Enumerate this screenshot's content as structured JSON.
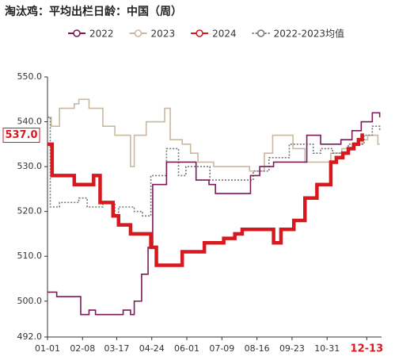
{
  "chart_data": {
    "type": "step-line",
    "title": "淘汰鸡：平均出栏日龄：中国（周）",
    "xlim": [
      0,
      362
    ],
    "xticks": [
      {
        "value": 0,
        "label": "01-01"
      },
      {
        "value": 38,
        "label": "02-08"
      },
      {
        "value": 75,
        "label": "03-17"
      },
      {
        "value": 113,
        "label": "04-24"
      },
      {
        "value": 151,
        "label": "06-01"
      },
      {
        "value": 189,
        "label": "07-09"
      },
      {
        "value": 227,
        "label": "08-16"
      },
      {
        "value": 265,
        "label": "09-23"
      },
      {
        "value": 303,
        "label": "10-31"
      },
      {
        "value": 346,
        "label": "12-13"
      }
    ],
    "ylim": [
      492,
      550
    ],
    "yticks": [
      {
        "value": 492,
        "label": "492.0"
      },
      {
        "value": 500,
        "label": "500.0"
      },
      {
        "value": 510,
        "label": "510.0"
      },
      {
        "value": 520,
        "label": "520.0"
      },
      {
        "value": 530,
        "label": "530.0"
      },
      {
        "value": 540,
        "label": "540.0"
      },
      {
        "value": 550,
        "label": "550.0"
      }
    ],
    "annotation": {
      "value": 537,
      "label": "537.0"
    },
    "series": [
      {
        "name": "2022",
        "color": "#7b1a5a",
        "width": 1.6,
        "dash": "",
        "x": [
          0,
          10,
          36,
          45,
          52,
          82,
          90,
          94,
          102,
          109,
          114,
          129,
          161,
          175,
          182,
          220,
          230,
          245,
          281,
          296,
          318,
          330,
          340,
          352,
          360
        ],
        "values": [
          502,
          501,
          497,
          498,
          497,
          498,
          497,
          500,
          506,
          512,
          526,
          531,
          527,
          526,
          524,
          528,
          530,
          531,
          537,
          535,
          536,
          538,
          540,
          542,
          541
        ]
      },
      {
        "name": "2023",
        "color": "#c8b9a0",
        "width": 1.6,
        "dash": "",
        "x": [
          0,
          4,
          13,
          29,
          34,
          45,
          60,
          73,
          90,
          94,
          107,
          127,
          133,
          146,
          155,
          163,
          180,
          219,
          235,
          244,
          266,
          279,
          307,
          319,
          330,
          341,
          347,
          358,
          360
        ],
        "values": [
          541,
          539,
          543,
          544,
          545,
          543,
          539,
          537,
          530,
          537,
          540,
          543,
          536,
          535,
          533,
          531,
          530,
          529,
          533,
          537,
          534,
          531,
          533,
          534,
          535,
          536,
          537,
          535,
          535
        ]
      },
      {
        "name": "2024",
        "color": "#d7191f",
        "width": 4.5,
        "dash": "",
        "x": [
          0,
          5,
          29,
          50,
          57,
          71,
          77,
          90,
          112,
          118,
          146,
          170,
          191,
          203,
          211,
          245,
          253,
          267,
          279,
          292,
          307,
          313,
          320,
          326,
          332,
          337,
          341,
          343
        ],
        "values": [
          535,
          528,
          526,
          528,
          522,
          519,
          517,
          515,
          512,
          508,
          511,
          513,
          514,
          515,
          516,
          513,
          516,
          518,
          523,
          526,
          531,
          532,
          533,
          534,
          535,
          536,
          537,
          537
        ]
      },
      {
        "name": "2022-2023均值",
        "color": "#777777",
        "width": 1.6,
        "dash": "2,2",
        "x": [
          0,
          3,
          13,
          34,
          43,
          60,
          73,
          77,
          94,
          103,
          112,
          129,
          142,
          150,
          176,
          223,
          240,
          262,
          288,
          296,
          309,
          326,
          343,
          352,
          360
        ],
        "values": [
          541,
          521,
          522,
          523,
          521,
          522,
          519,
          521,
          520,
          519,
          528,
          534,
          528,
          530,
          527,
          529,
          532,
          535,
          533,
          534,
          533,
          535,
          537,
          539,
          538
        ]
      }
    ]
  }
}
